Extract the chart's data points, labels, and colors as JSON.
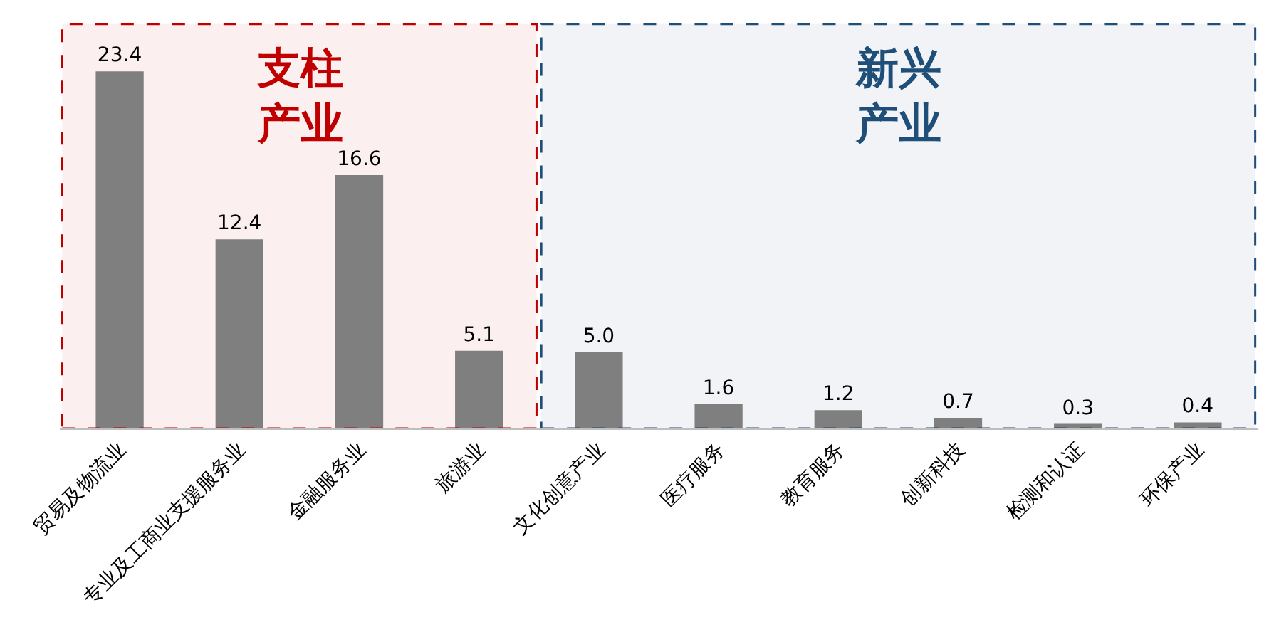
{
  "chart_data": {
    "type": "bar",
    "categories": [
      "贸易及物流业",
      "专业及工商业支援服务业",
      "金融服务业",
      "旅游业",
      "文化创意产业",
      "医疗服务",
      "教育服务",
      "创新科技",
      "检测和认证",
      "环保产业"
    ],
    "values": [
      23.4,
      12.4,
      16.6,
      5.1,
      5.0,
      1.6,
      1.2,
      0.7,
      0.3,
      0.4
    ],
    "value_labels": [
      "23.4",
      "12.4",
      "16.6",
      "5.1",
      "5.0",
      "1.6",
      "1.2",
      "0.7",
      "0.3",
      "0.4"
    ],
    "color": "#7f7f7f",
    "bands": [
      {
        "axis": "x",
        "from": "贸易及物流业",
        "to": "旅游业",
        "label": "支柱产业",
        "color": "#c00000"
      },
      {
        "axis": "x",
        "from": "文化创意产业",
        "to": "环保产业",
        "label": "新兴产业",
        "color": "#1f4e79"
      }
    ],
    "grid": false
  }
}
